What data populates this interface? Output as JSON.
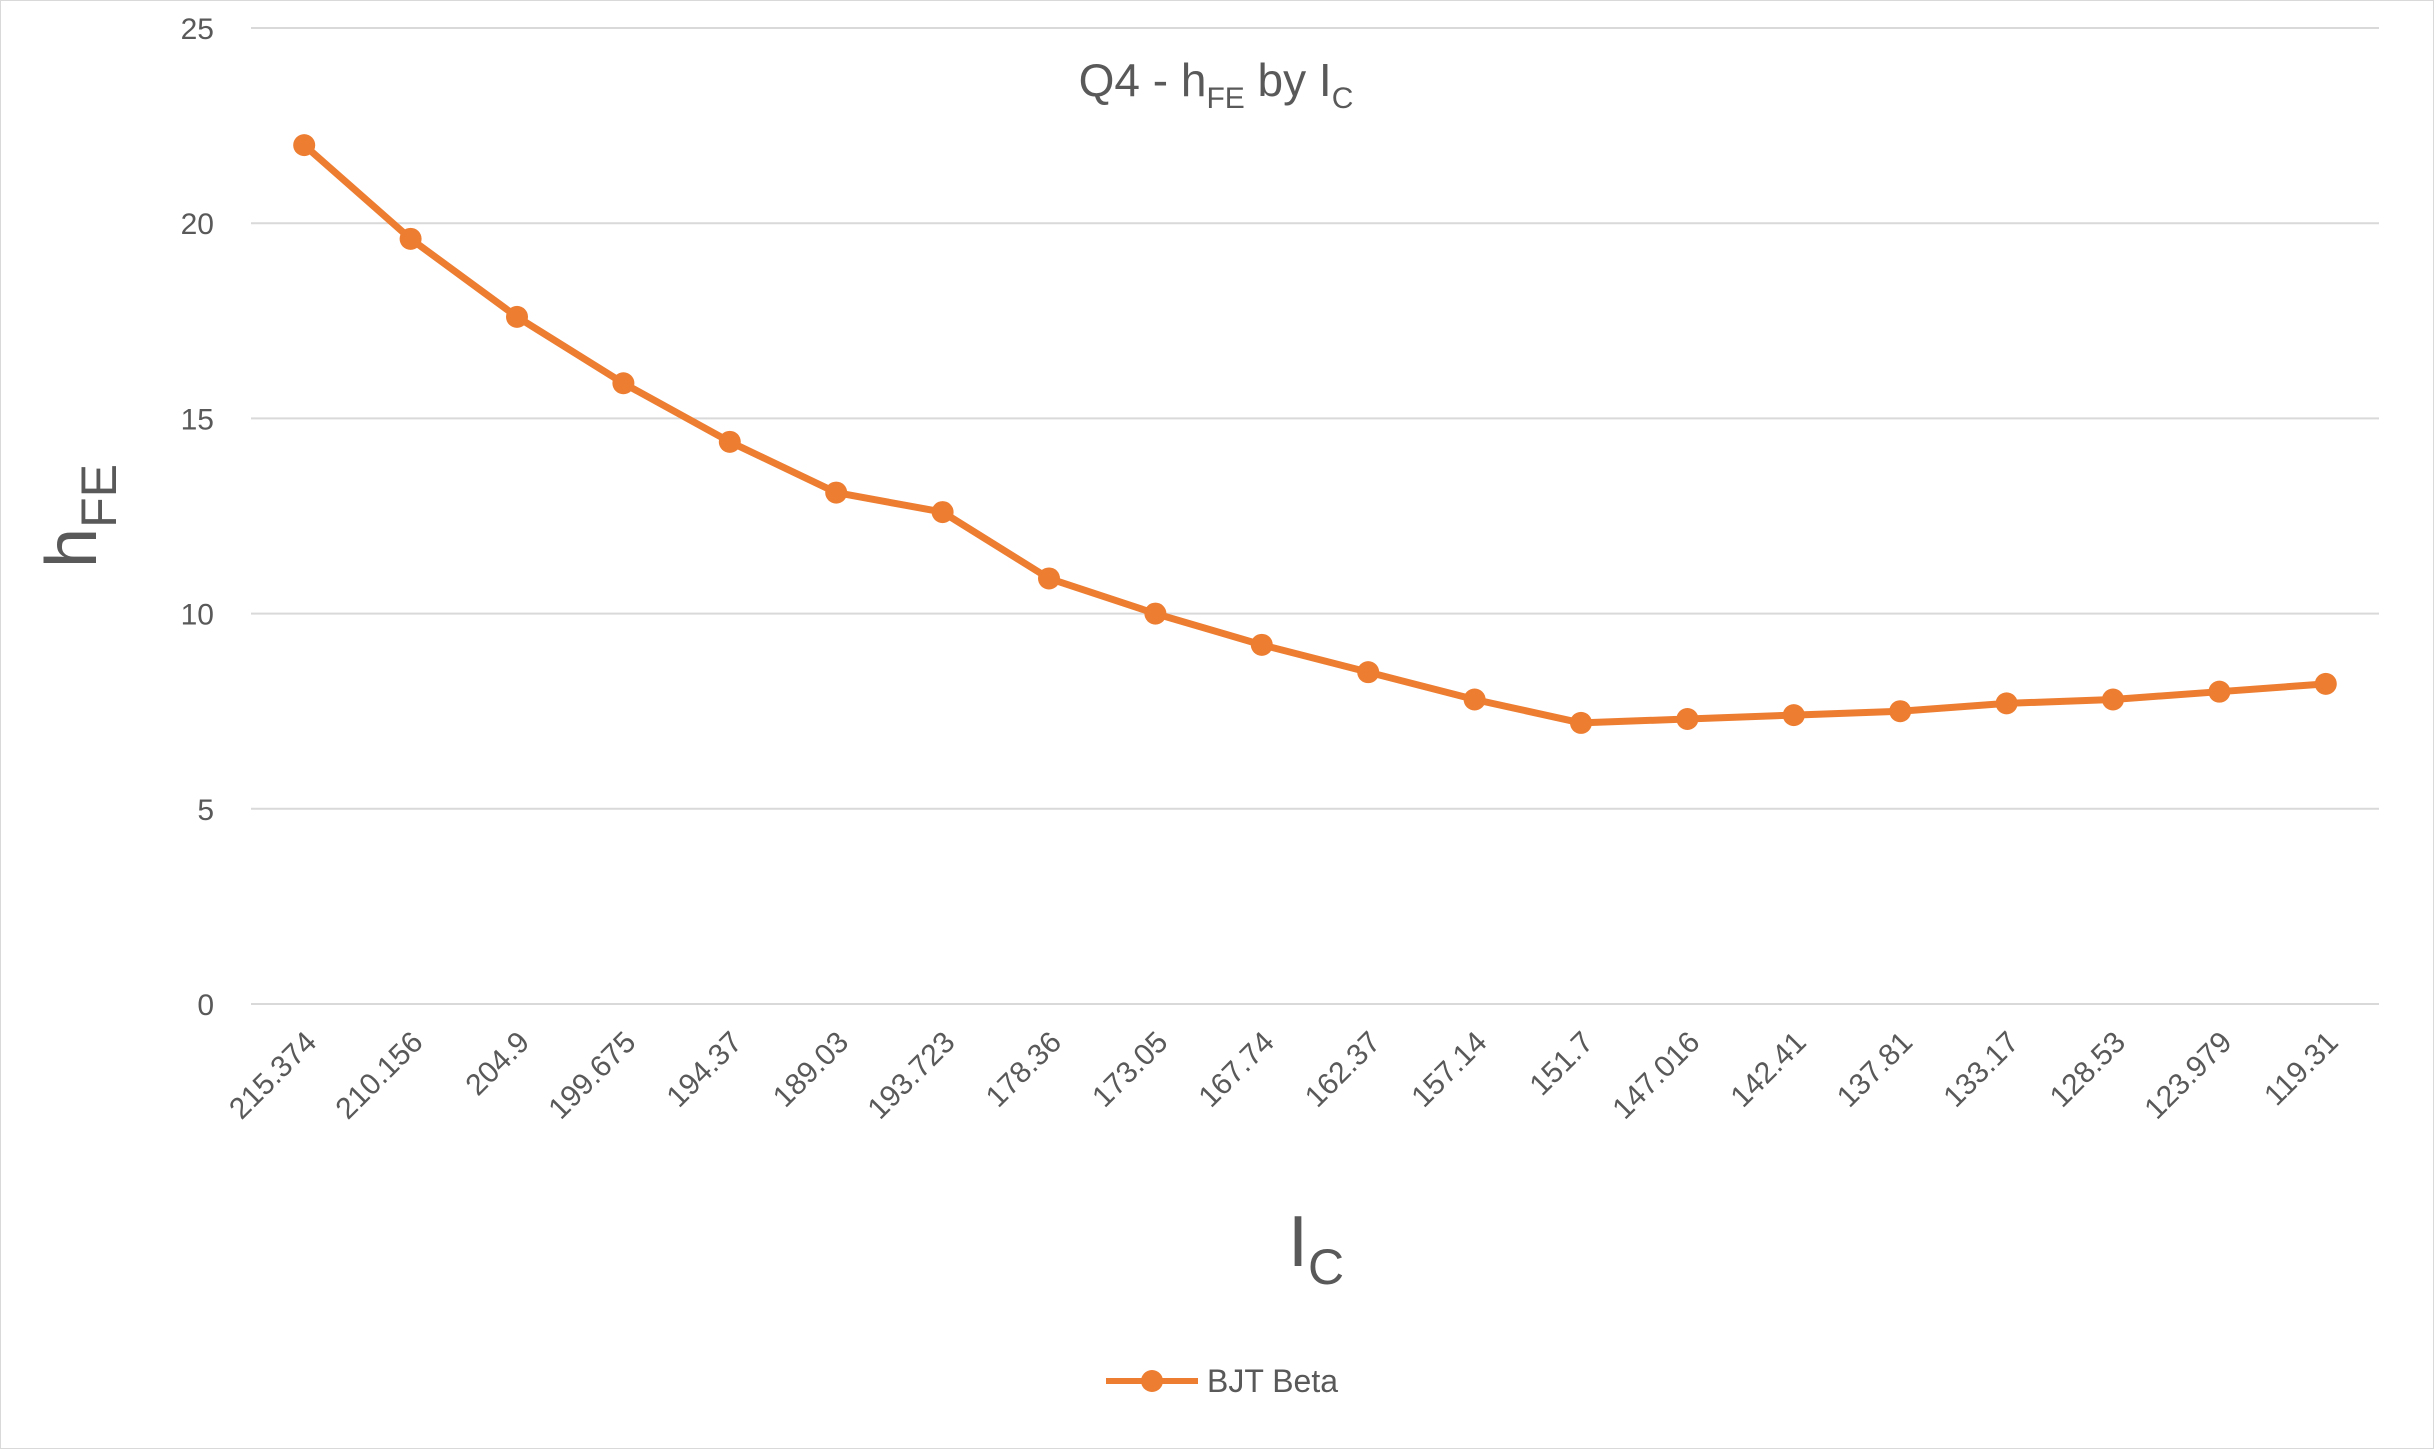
{
  "chart_data": {
    "type": "line",
    "title": {
      "main": "Q4 - h",
      "main_sub": "FE",
      "mid": " by I",
      "mid_sub": "C"
    },
    "xlabel": {
      "main": "I",
      "sub": "C"
    },
    "ylabel": {
      "main": "h",
      "sub": "FE"
    },
    "ylim": [
      0,
      25
    ],
    "yticks": [
      "0",
      "5",
      "10",
      "15",
      "20",
      "25"
    ],
    "grid": true,
    "legend_position": "bottom",
    "color": "#ED7D31",
    "categories": [
      "215.374",
      "210.156",
      "204.9",
      "199.675",
      "194.37",
      "189.03",
      "193.723",
      "178.36",
      "173.05",
      "167.74",
      "162.37",
      "157.14",
      "151.7",
      "147.016",
      "142.41",
      "137.81",
      "133.17",
      "128.53",
      "123.979",
      "119.31"
    ],
    "series": [
      {
        "name": "BJT Beta",
        "values": [
          22.0,
          19.6,
          17.6,
          15.9,
          14.4,
          13.1,
          12.6,
          10.9,
          10.0,
          9.2,
          8.5,
          7.8,
          7.2,
          7.3,
          7.4,
          7.5,
          7.7,
          7.8,
          8.0,
          8.2
        ]
      }
    ]
  }
}
